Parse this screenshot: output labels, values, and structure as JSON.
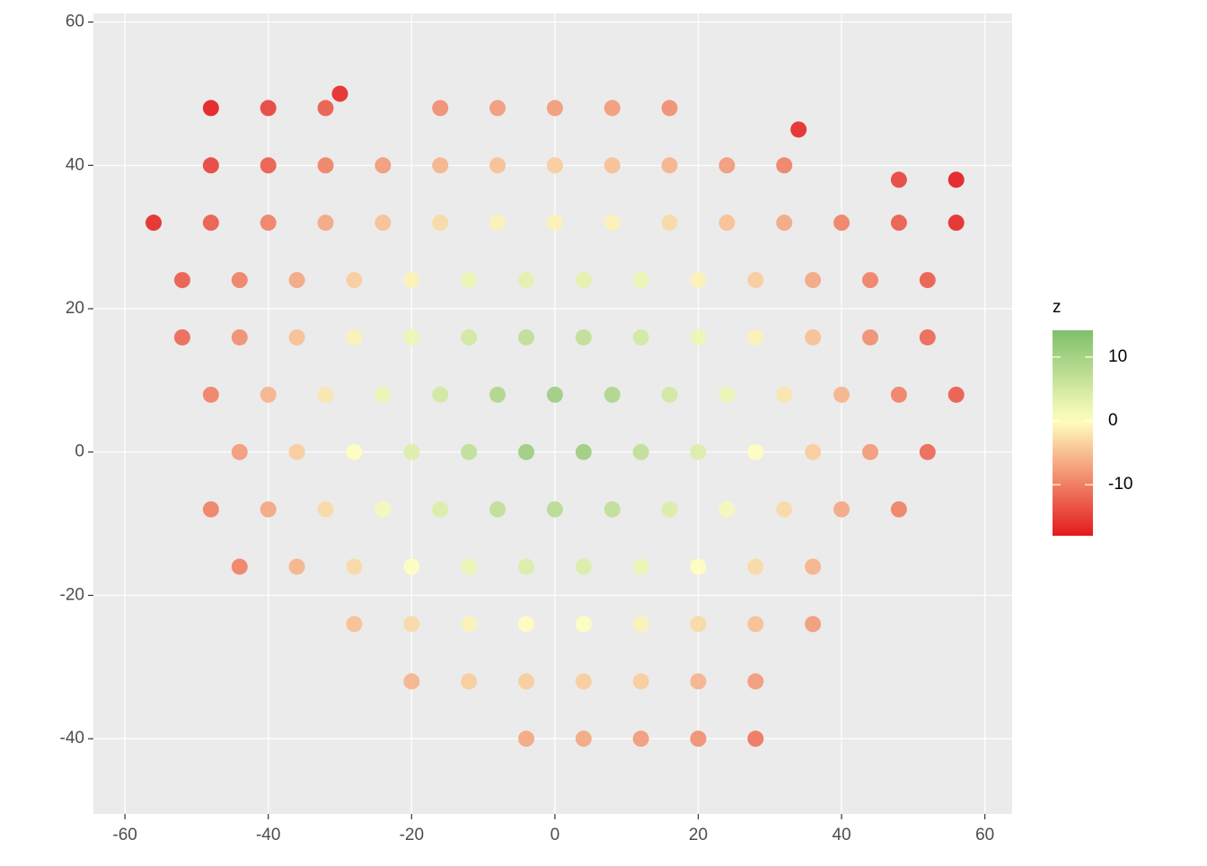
{
  "chart_data": {
    "type": "scatter",
    "color_label": "z",
    "xlim": [
      -64.4,
      63.8
    ],
    "ylim": [
      -50.5,
      61.2
    ],
    "xticks": [
      -60,
      -40,
      -20,
      0,
      20,
      40,
      60
    ],
    "yticks": [
      -40,
      -20,
      0,
      20,
      40,
      60
    ],
    "grid": true,
    "zlim": [
      -18,
      14.2
    ],
    "midpoint": 0,
    "colorbar_ticks": [
      -10,
      0,
      10
    ],
    "colors": [
      "#e31a1c",
      "#ffffbf",
      "#7fbf6b"
    ],
    "x": [
      -48,
      -40,
      -32,
      -16,
      -8,
      0,
      8,
      16,
      -48,
      -40,
      -32,
      -24,
      -16,
      -8,
      0,
      8,
      16,
      24,
      32,
      48,
      56,
      -56,
      -48,
      -40,
      -32,
      -24,
      -16,
      -8,
      0,
      8,
      16,
      24,
      32,
      40,
      48,
      56,
      -52,
      -44,
      -36,
      -28,
      -20,
      -12,
      -4,
      4,
      12,
      20,
      28,
      36,
      44,
      52,
      -52,
      -44,
      -36,
      -28,
      -20,
      -12,
      -4,
      4,
      12,
      20,
      28,
      36,
      44,
      52,
      -48,
      -40,
      -32,
      -24,
      -16,
      -8,
      0,
      8,
      16,
      24,
      32,
      40,
      48,
      56,
      -44,
      -36,
      -28,
      -20,
      -12,
      -4,
      4,
      12,
      20,
      28,
      36,
      44,
      52,
      -48,
      -40,
      -32,
      -24,
      -16,
      -8,
      0,
      8,
      16,
      24,
      32,
      40,
      48,
      -44,
      -36,
      -28,
      -20,
      -12,
      -4,
      4,
      12,
      20,
      28,
      36,
      -28,
      -20,
      -12,
      -4,
      4,
      12,
      20,
      28,
      36,
      -20,
      -12,
      -4,
      4,
      12,
      20,
      28,
      -4,
      4,
      12,
      20,
      28,
      34,
      -30
    ],
    "y": [
      48,
      48,
      48,
      48,
      48,
      48,
      48,
      48,
      40,
      40,
      40,
      40,
      40,
      40,
      40,
      40,
      40,
      40,
      40,
      38,
      38,
      32,
      32,
      32,
      32,
      32,
      32,
      32,
      32,
      32,
      32,
      32,
      32,
      32,
      32,
      32,
      24,
      24,
      24,
      24,
      24,
      24,
      24,
      24,
      24,
      24,
      24,
      24,
      24,
      24,
      16,
      16,
      16,
      16,
      16,
      16,
      16,
      16,
      16,
      16,
      16,
      16,
      16,
      16,
      8,
      8,
      8,
      8,
      8,
      8,
      8,
      8,
      8,
      8,
      8,
      8,
      8,
      8,
      0,
      0,
      0,
      0,
      0,
      0,
      0,
      0,
      0,
      0,
      0,
      0,
      0,
      -8,
      -8,
      -8,
      -8,
      -8,
      -8,
      -8,
      -8,
      -8,
      -8,
      -8,
      -8,
      -8,
      -16,
      -16,
      -16,
      -16,
      -16,
      -16,
      -16,
      -16,
      -16,
      -16,
      -16,
      -24,
      -24,
      -24,
      -24,
      -24,
      -24,
      -24,
      -24,
      -24,
      -32,
      -32,
      -32,
      -32,
      -32,
      -32,
      -32,
      -40,
      -40,
      -40,
      -40,
      -40,
      45,
      50
    ],
    "values": [
      -18,
      -15,
      -13,
      -9,
      -8,
      -8,
      -8,
      -9,
      -15,
      -13,
      -10,
      -8,
      -6,
      -5,
      -4,
      -5,
      -6,
      -8,
      -10,
      -15,
      -18,
      -17,
      -13,
      -10,
      -7,
      -5,
      -3,
      -1,
      -1,
      -1,
      -3,
      -5,
      -7,
      -10,
      -13,
      -17,
      -13,
      -10,
      -7,
      -4,
      -1,
      2,
      3,
      3,
      2,
      -1,
      -4,
      -7,
      -10,
      -13,
      -12,
      -9,
      -5,
      -1,
      2,
      5,
      7,
      7,
      5,
      2,
      -1,
      -5,
      -9,
      -12,
      -10,
      -6,
      -2,
      2,
      5,
      9,
      11,
      9,
      5,
      2,
      -2,
      -6,
      -10,
      -13,
      -8,
      -4,
      0,
      4,
      7,
      11,
      11,
      7,
      4,
      0,
      -4,
      -8,
      -12,
      -10,
      -7,
      -3,
      1,
      4,
      7,
      8,
      7,
      4,
      1,
      -3,
      -7,
      -10,
      -10,
      -6,
      -3,
      0,
      2,
      4,
      4,
      2,
      0,
      -3,
      -6,
      -5,
      -3,
      -1,
      0,
      0,
      -1,
      -3,
      -5,
      -8,
      -6,
      -4,
      -4,
      -4,
      -4,
      -6,
      -8,
      -7,
      -7,
      -8,
      -9,
      -11,
      -17,
      -17
    ]
  }
}
